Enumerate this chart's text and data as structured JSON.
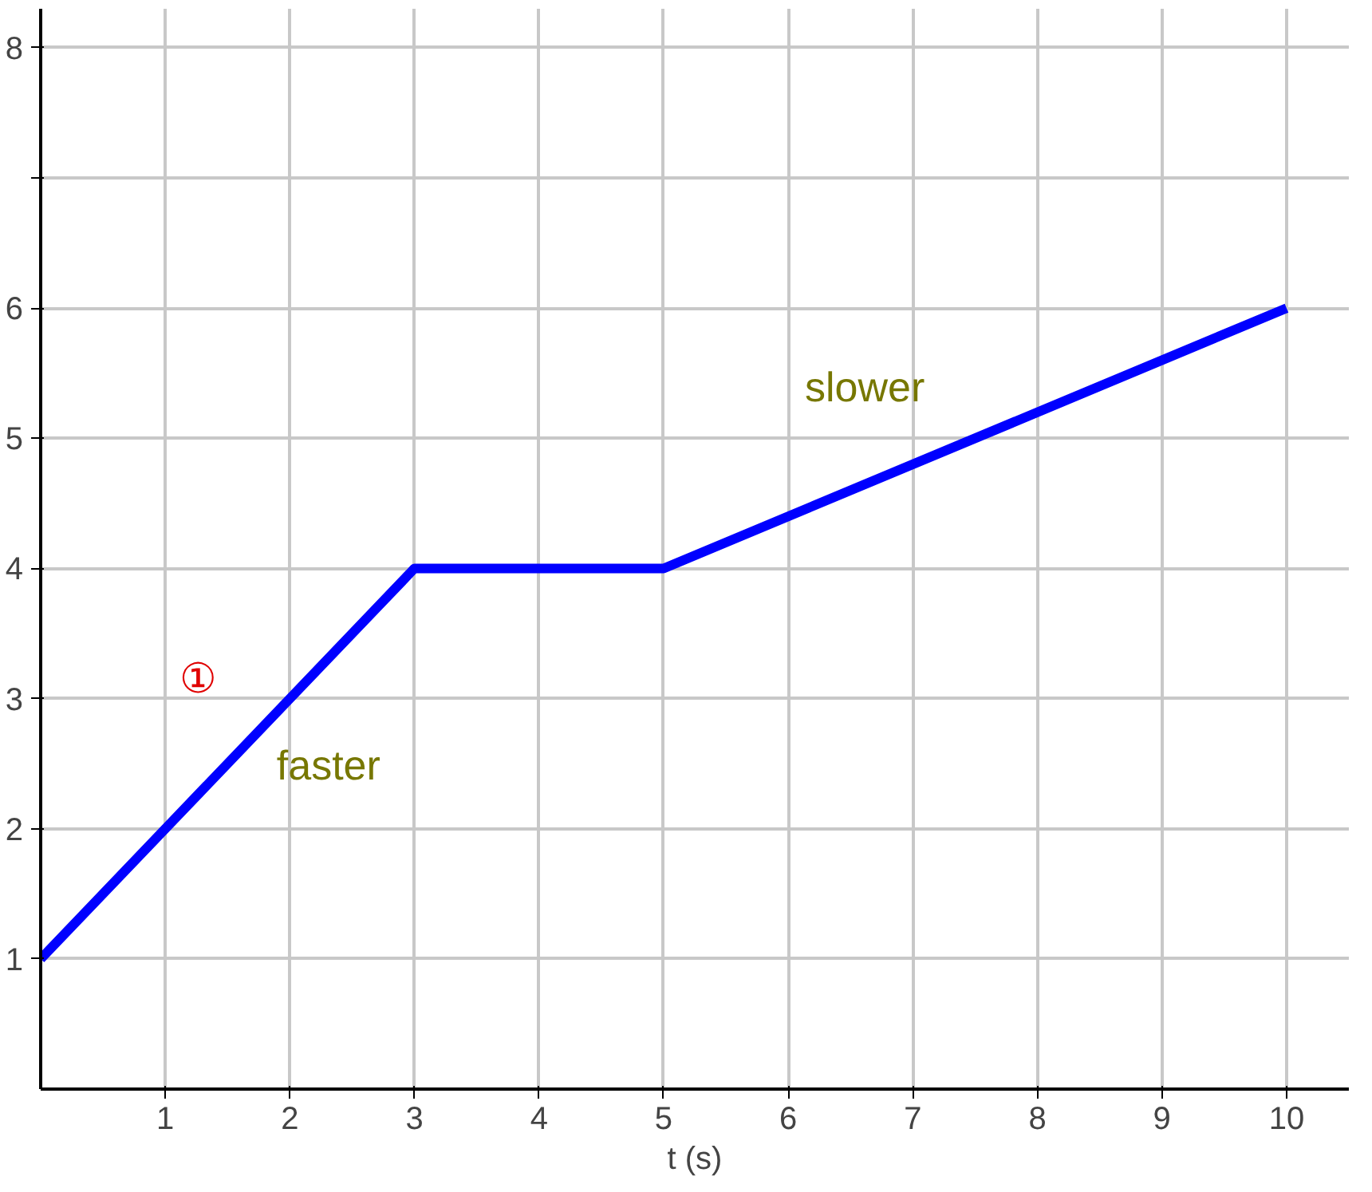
{
  "chart_data": {
    "type": "line",
    "xlabel": "t (s)",
    "x": [
      0,
      3,
      5,
      10
    ],
    "series": [
      {
        "color": "#0000ff",
        "values": [
          1,
          4,
          4,
          6
        ]
      }
    ],
    "xlim": [
      0,
      10.5
    ],
    "ylim": [
      0,
      8.3
    ],
    "xticks": [
      1,
      2,
      3,
      4,
      5,
      6,
      7,
      8,
      9,
      10
    ],
    "yticks": [
      1,
      2,
      3,
      4,
      5,
      6,
      {
        "value": 7,
        "label": null
      },
      8
    ],
    "grid": true,
    "marker": "none",
    "line_style": "solid",
    "annotations": [
      "faster",
      "slower",
      "①"
    ]
  }
}
